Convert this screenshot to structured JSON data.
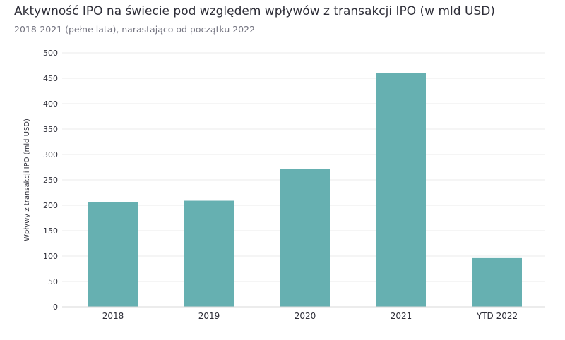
{
  "chart_data": {
    "type": "bar",
    "title": "Aktywność IPO na świecie pod względem wpływów z transakcji IPO (w mld USD)",
    "subtitle": "2018-2021 (pełne lata), narastająco od początku 2022",
    "ylabel": "Wpływy z transakcji IPO (mld USD)",
    "xlabel": "",
    "categories": [
      "2018",
      "2019",
      "2020",
      "2021",
      "YTD 2022"
    ],
    "values": [
      206,
      209,
      272,
      461,
      96
    ],
    "ylim": [
      0,
      500
    ],
    "yticks": [
      0,
      50,
      100,
      150,
      200,
      250,
      300,
      350,
      400,
      450,
      500
    ],
    "grid": true,
    "bar_color": "#66b0b1",
    "grid_color": "#ebebeb"
  }
}
